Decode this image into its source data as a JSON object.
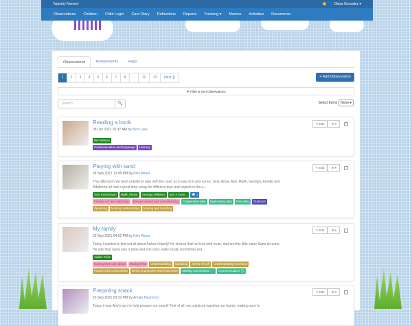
{
  "app": {
    "title": "Tapestry Nursery",
    "user": "Olaya Gonzalez"
  },
  "nav": [
    "Observations",
    "Children",
    "Child Login",
    "Care Diary",
    "Reflections",
    "Reports",
    "Tracking ▾",
    "Memos",
    "Activities",
    "Documents"
  ],
  "tabs": [
    "Observations",
    "Assessments",
    "Flags"
  ],
  "pager": [
    "1",
    "2",
    "3",
    "4",
    "5",
    "6",
    "7",
    "8",
    "...",
    "12",
    "13",
    "Next ❯"
  ],
  "add_label": "+ Add Observation",
  "filter_label": "▼ Filter & Sort Observations",
  "search_placeholder": "Search",
  "select_items": {
    "label": "Select Items",
    "value": "None ▾"
  },
  "edit_label": "✎ Edit",
  "gear_label": "⚙ ▾",
  "observations": [
    {
      "title": "Reading a book",
      "date": "05 Oct 2021 10:37 AM by",
      "author": "Ben Case",
      "desc": "",
      "rows": [
        [
          {
            "t": "Ben Wilson",
            "c": "child"
          }
        ],
        [
          {
            "t": "Communication and language",
            "c": "purple"
          },
          {
            "t": "Literacy",
            "c": "purple"
          }
        ]
      ]
    },
    {
      "title": "Playing with sand",
      "date": "24 Sep 2021 12:05 PM by",
      "author": "Kibo Abara",
      "desc": "This afternoon we went outside to play with the sand as it was nice and sunny. Sosi, Anna, Abri, Malih, Georgia, Amelie and Adalberto all had a great time using the different toys and objects in the s...",
      "rows": [
        [
          {
            "t": "Sosi Kartashyan",
            "c": "child"
          },
          {
            "t": "Malih Shakir",
            "c": "child"
          },
          {
            "t": "Georgia Williams",
            "c": "child"
          },
          {
            "t": "and 4 more...",
            "c": "child"
          },
          {
            "t": "💬 1",
            "c": "blue"
          }
        ],
        [
          {
            "t": "Finding out and exploring",
            "c": "pink"
          },
          {
            "t": "Being involved and concentrating",
            "c": "pink"
          },
          {
            "t": "Cooperative play",
            "c": "teal"
          },
          {
            "t": "Exploratory play",
            "c": "teal"
          },
          {
            "t": "Free play",
            "c": "teal"
          },
          {
            "t": "Outdoors",
            "c": "indigo"
          }
        ],
        [
          {
            "t": "Speaking",
            "c": "gold"
          },
          {
            "t": "Making relationships",
            "c": "gold"
          },
          {
            "t": "Moving and handling",
            "c": "gold"
          }
        ]
      ]
    },
    {
      "title": "My family",
      "date": "23 Sep 2021 04:02 PM by",
      "author": "Kibo Abara",
      "desc": "Today I wanted to find out all about Aakav's family! He shared that he lives with mum, dad and his little sister Sana at home. He said that Sana was a baby and she cries really loudly sometimes but...",
      "rows": [
        [
          {
            "t": "Aakav Khan",
            "c": "child"
          }
        ],
        [
          {
            "t": "Having their own ideas",
            "c": "pink"
          },
          {
            "t": "Making links",
            "c": "pink"
          },
          {
            "t": "Understanding",
            "c": "gold"
          },
          {
            "t": "Speaking",
            "c": "gold"
          },
          {
            "t": "Sense of self",
            "c": "gold"
          },
          {
            "t": "Understanding emotions",
            "c": "gold"
          }
        ],
        [
          {
            "t": "People and communities",
            "c": "gold"
          },
          {
            "t": "Being imaginative and expressive",
            "c": "gold"
          },
          {
            "t": "Making connections 🔗",
            "c": "teal"
          },
          {
            "t": "Communication 🗣",
            "c": "teal"
          }
        ]
      ]
    },
    {
      "title": "Preparing snack",
      "date": "23 Sep 2021 03:23 PM by",
      "author": "Amala Maamoun",
      "desc": "Today it was Abri's turn to help prepare our snack! First of all, we practiced washing our hands, making sure to",
      "rows": []
    }
  ]
}
